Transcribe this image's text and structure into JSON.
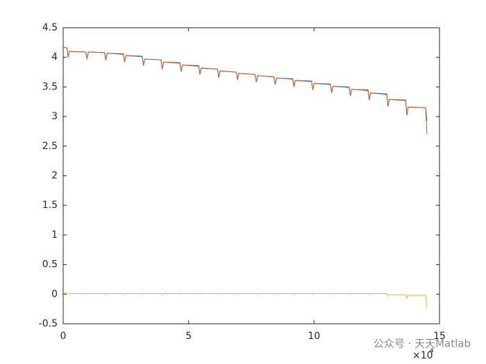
{
  "chart_data": {
    "type": "line",
    "x": [
      0,
      0.15,
      0.2,
      0.25,
      0.9,
      0.95,
      1.0,
      1.65,
      1.7,
      1.75,
      2.4,
      2.45,
      2.5,
      3.15,
      3.2,
      3.25,
      3.9,
      3.95,
      4.0,
      4.65,
      4.7,
      4.75,
      5.4,
      5.45,
      5.5,
      6.15,
      6.2,
      6.25,
      6.9,
      6.95,
      7.0,
      7.65,
      7.7,
      7.75,
      8.4,
      8.45,
      8.5,
      9.15,
      9.2,
      9.25,
      9.9,
      9.95,
      10.0,
      10.65,
      10.7,
      10.75,
      11.4,
      11.45,
      11.5,
      12.15,
      12.2,
      12.25,
      12.9,
      12.95,
      13.0,
      13.65,
      13.7,
      13.75,
      14.4,
      14.45,
      14.5
    ],
    "series": [
      {
        "color": "#0072BD",
        "values": [
          4.17,
          4.16,
          4.0,
          4.1,
          4.09,
          3.97,
          4.09,
          4.08,
          3.95,
          4.07,
          4.06,
          3.92,
          4.03,
          4.02,
          3.86,
          3.97,
          3.96,
          3.8,
          3.92,
          3.91,
          3.76,
          3.87,
          3.86,
          3.71,
          3.82,
          3.8,
          3.66,
          3.77,
          3.75,
          3.62,
          3.73,
          3.71,
          3.58,
          3.69,
          3.67,
          3.54,
          3.65,
          3.64,
          3.5,
          3.61,
          3.6,
          3.45,
          3.56,
          3.55,
          3.4,
          3.51,
          3.5,
          3.35,
          3.46,
          3.45,
          3.28,
          3.4,
          3.38,
          3.17,
          3.29,
          3.28,
          3.02,
          3.16,
          3.15,
          3.15,
          2.93
        ]
      },
      {
        "color": "#D95319",
        "values": [
          4.17,
          4.16,
          4.0,
          4.1,
          4.09,
          3.97,
          4.09,
          4.08,
          3.95,
          4.07,
          4.05,
          3.92,
          4.03,
          4.01,
          3.86,
          3.97,
          3.96,
          3.8,
          3.92,
          3.9,
          3.76,
          3.87,
          3.85,
          3.71,
          3.82,
          3.8,
          3.66,
          3.77,
          3.75,
          3.62,
          3.73,
          3.71,
          3.58,
          3.69,
          3.67,
          3.54,
          3.65,
          3.63,
          3.5,
          3.61,
          3.59,
          3.45,
          3.56,
          3.54,
          3.4,
          3.51,
          3.49,
          3.35,
          3.46,
          3.44,
          3.28,
          3.4,
          3.37,
          3.17,
          3.29,
          3.27,
          3.02,
          3.16,
          3.15,
          3.15,
          2.7
        ]
      },
      {
        "color": "#EDB120",
        "values": [
          0.02,
          0.02,
          0,
          0.01,
          0.01,
          0,
          0.01,
          0.01,
          0,
          0.01,
          0.01,
          0,
          0.01,
          0.01,
          0,
          0.01,
          0.01,
          -0.01,
          0.01,
          0.01,
          0,
          0.01,
          0.01,
          0,
          0.01,
          0.01,
          0,
          0.01,
          0.01,
          0,
          0.01,
          0.01,
          0,
          0.01,
          0.01,
          0,
          0.01,
          0.01,
          0,
          0.01,
          0.01,
          0,
          0.01,
          0.01,
          0,
          0.01,
          0.01,
          0,
          0.01,
          0.01,
          0,
          0.01,
          0.01,
          -0.03,
          -0.01,
          -0.01,
          -0.07,
          -0.02,
          -0.02,
          -0.02,
          -0.22
        ]
      }
    ],
    "xlim": [
      0,
      15
    ],
    "xticks": [
      0,
      5,
      10,
      15
    ],
    "ylim": [
      -0.5,
      4.5
    ],
    "yticks": [
      -0.5,
      0,
      0.5,
      1,
      1.5,
      2,
      2.5,
      3,
      3.5,
      4,
      4.5
    ],
    "x_multiplier": "×10",
    "x_multiplier_exponent": "4",
    "watermark": "公众号 · 天天Matlab"
  }
}
